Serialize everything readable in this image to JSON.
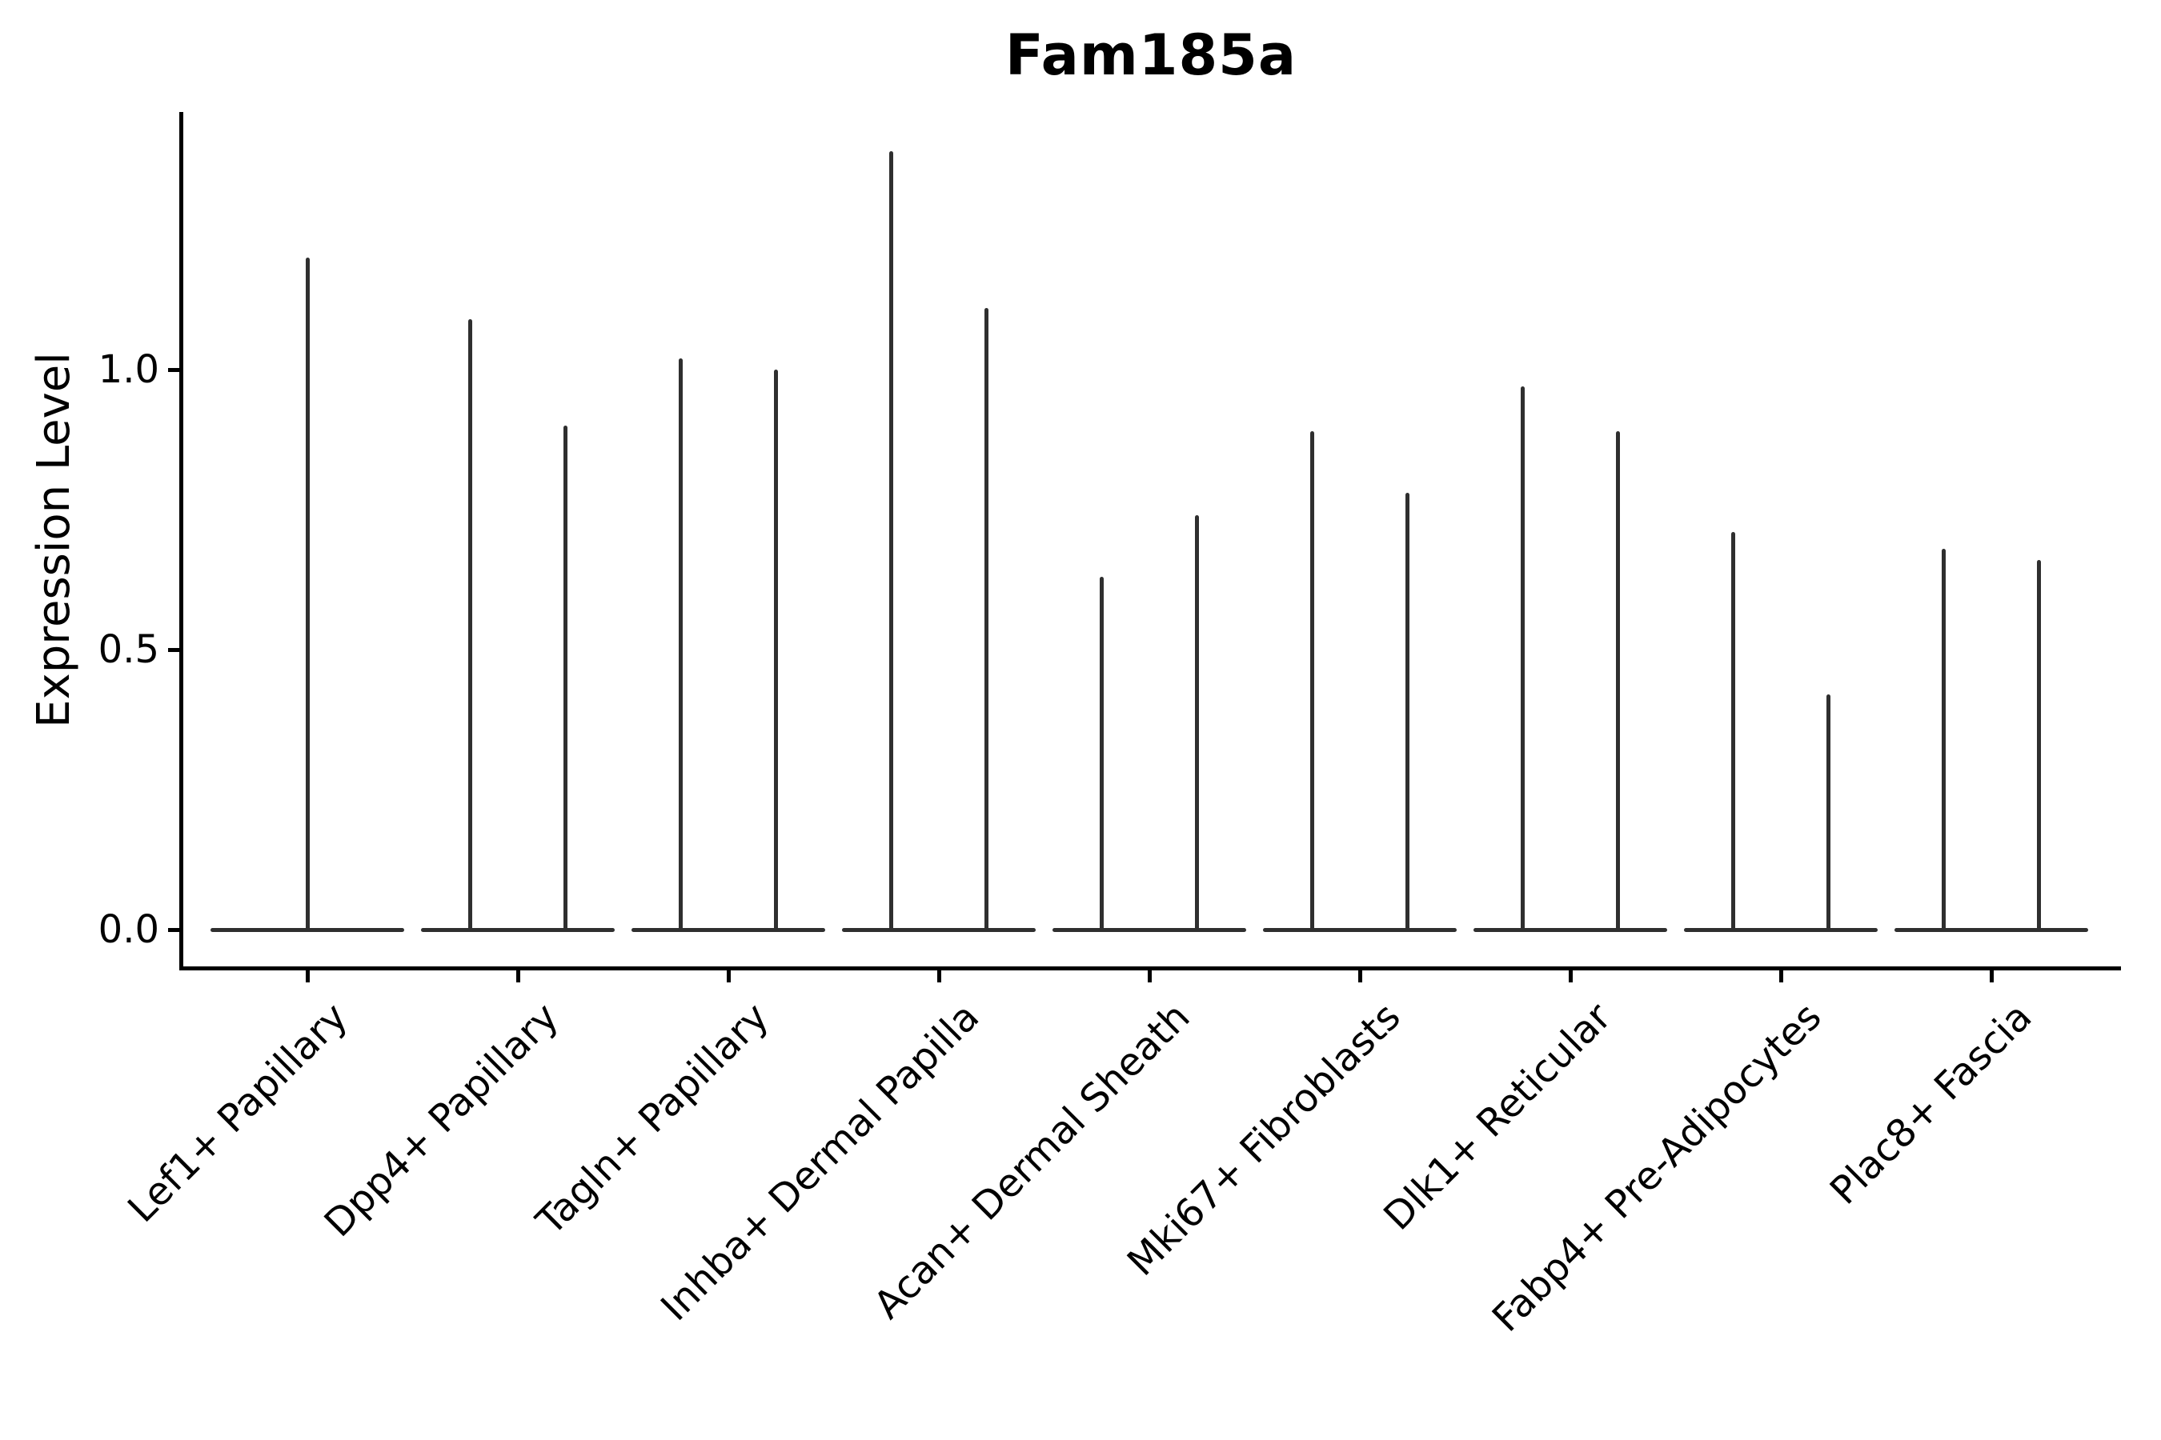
{
  "title": "Fam185a",
  "y_axis": {
    "label": "Expression Level",
    "ticks": [
      {
        "label": "0.0",
        "value": 0.0
      },
      {
        "label": "0.5",
        "value": 0.5
      },
      {
        "label": "1.0",
        "value": 1.0
      }
    ]
  },
  "x_axis": {
    "categories": [
      "Lef1+ Papillary",
      "Dpp4+ Papillary",
      "Tagln+ Papillary",
      "Inhba+ Dermal Papilla",
      "Acan+ Dermal Sheath",
      "Mki67+ Fibroblasts",
      "Dlk1+ Reticular",
      "Fabp4+ Pre-Adipocytes",
      "Plac8+ Fascia"
    ]
  },
  "style": {
    "violin_color": "#2f2f2f",
    "axis_color": "#000000",
    "background": "#ffffff"
  },
  "chart_data": {
    "type": "violin",
    "title": "Fam185a",
    "xlabel": "",
    "ylabel": "Expression Level",
    "categories": [
      "Lef1+ Papillary",
      "Dpp4+ Papillary",
      "Tagln+ Papillary",
      "Inhba+ Dermal Papilla",
      "Acan+ Dermal Sheath",
      "Mki67+ Fibroblasts",
      "Dlk1+ Reticular",
      "Fabp4+ Pre-Adipocytes",
      "Plac8+ Fascia"
    ],
    "description": "Violin plot of Fam185a expression per fibroblast cluster. Expression is near zero for most cells, so each violin collapses to a flat bar at 0 with thin vertical spikes reaching the maximum expression value. Every category except the first shows two side-by-side spikes (two violins per category); the first category shows a single centered spike.",
    "series": [
      {
        "name": "left-violin-max",
        "values": [
          1.2,
          1.09,
          1.02,
          1.39,
          0.63,
          0.89,
          0.97,
          0.71,
          0.68
        ]
      },
      {
        "name": "right-violin-max",
        "values": [
          null,
          0.9,
          1.0,
          1.11,
          0.74,
          0.78,
          0.89,
          0.42,
          0.66
        ]
      }
    ],
    "baseline_value": 0.0,
    "ylim": [
      -0.07,
      1.45
    ],
    "yticks": [
      0.0,
      0.5,
      1.0
    ],
    "grid": false,
    "legend": "none"
  }
}
